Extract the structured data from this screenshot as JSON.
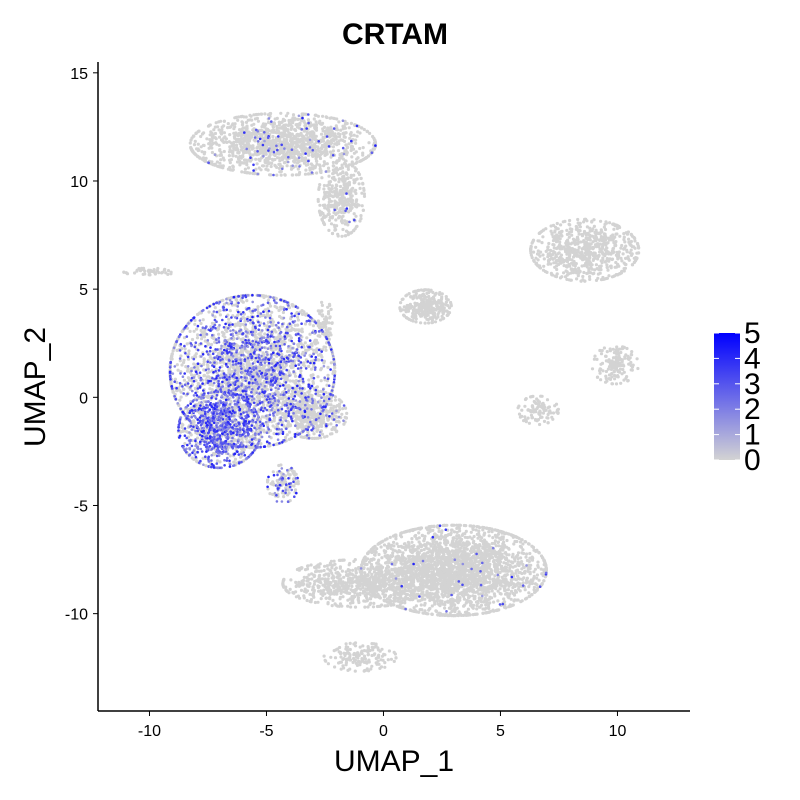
{
  "chart_data": {
    "type": "scatter",
    "title": "CRTAM",
    "xlabel": "UMAP_1",
    "ylabel": "UMAP_2",
    "xlim": [
      -12.2,
      13.1
    ],
    "ylim": [
      -14.5,
      15.5
    ],
    "x_ticks": [
      -10,
      -5,
      0,
      5,
      10
    ],
    "y_ticks": [
      -10,
      -5,
      0,
      5,
      10,
      15
    ],
    "x_tick_labels": [
      "-10",
      "-5",
      "0",
      "5",
      "10"
    ],
    "y_tick_labels": [
      "-10",
      "-5",
      "0",
      "5",
      "10",
      "15"
    ],
    "grid": false,
    "colors": {
      "low": "#d3d3d3",
      "high": "#0000ff"
    },
    "legend": {
      "position": "right",
      "type": "colorbar",
      "min": 0,
      "max": 5,
      "labels": [
        "5",
        "4",
        "3",
        "2",
        "1",
        "0"
      ]
    },
    "clusters": [
      {
        "name": "c1",
        "cx": -4.3,
        "cy": 11.7,
        "rx": 3.6,
        "ry": 1.3,
        "n": 1400,
        "expr": 0.05
      },
      {
        "name": "c2",
        "cx": -1.8,
        "cy": 9.2,
        "rx": 0.9,
        "ry": 1.6,
        "n": 350,
        "expr": 0.02
      },
      {
        "name": "c3",
        "cx": -5.6,
        "cy": 1.2,
        "rx": 3.2,
        "ry": 3.2,
        "n": 3000,
        "expr": 0.35
      },
      {
        "name": "c4",
        "cx": -7.0,
        "cy": -1.5,
        "rx": 1.6,
        "ry": 1.6,
        "n": 900,
        "expr": 0.6
      },
      {
        "name": "c5",
        "cx": -3.0,
        "cy": -0.8,
        "rx": 1.3,
        "ry": 1.0,
        "n": 400,
        "expr": 0.1
      },
      {
        "name": "c6",
        "cx": -4.3,
        "cy": -4.0,
        "rx": 0.6,
        "ry": 0.8,
        "n": 120,
        "expr": 0.4
      },
      {
        "name": "c7",
        "cx": 1.8,
        "cy": 4.2,
        "rx": 1.0,
        "ry": 0.7,
        "n": 300,
        "expr": 0.0
      },
      {
        "name": "c8",
        "cx": 8.6,
        "cy": 6.8,
        "rx": 2.1,
        "ry": 1.3,
        "n": 700,
        "expr": 0.0
      },
      {
        "name": "c9",
        "cx": 9.9,
        "cy": 1.5,
        "rx": 0.9,
        "ry": 0.8,
        "n": 150,
        "expr": 0.0
      },
      {
        "name": "c10",
        "cx": 6.6,
        "cy": -0.6,
        "rx": 0.8,
        "ry": 0.6,
        "n": 100,
        "expr": 0.0
      },
      {
        "name": "c11",
        "cx": 3.0,
        "cy": -8.0,
        "rx": 3.6,
        "ry": 1.9,
        "n": 2600,
        "expr": 0.01
      },
      {
        "name": "c12",
        "cx": -1.0,
        "cy": -8.6,
        "rx": 3.0,
        "ry": 1.0,
        "n": 700,
        "expr": 0.0
      },
      {
        "name": "c13",
        "cx": -1.0,
        "cy": -12.0,
        "rx": 1.4,
        "ry": 0.6,
        "n": 150,
        "expr": 0.0
      },
      {
        "name": "c14",
        "cx": -10.0,
        "cy": 5.8,
        "rx": 1.0,
        "ry": 0.15,
        "n": 40,
        "expr": 0.0
      },
      {
        "name": "c15",
        "cx": -2.5,
        "cy": 3.5,
        "rx": 0.3,
        "ry": 0.9,
        "n": 60,
        "expr": 0.0
      }
    ]
  }
}
